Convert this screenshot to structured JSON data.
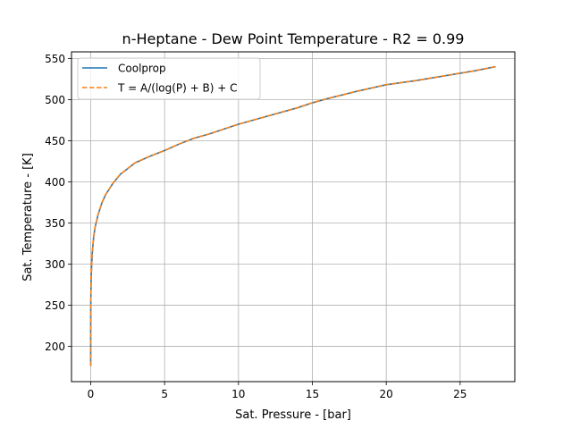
{
  "chart_data": {
    "type": "line",
    "title": "n-Heptane - Dew Point Temperature - R2 = 0.99",
    "xlabel": "Sat. Pressure - [bar]",
    "ylabel": "Sat. Temperature - [K]",
    "xlim": [
      -1.3,
      28.7
    ],
    "ylim": [
      157,
      558
    ],
    "xticks": [
      0,
      5,
      10,
      15,
      20,
      25
    ],
    "yticks": [
      200,
      250,
      300,
      350,
      400,
      450,
      500,
      550
    ],
    "grid": true,
    "legend_position": "top-left",
    "series": [
      {
        "name": "Coolprop",
        "color": "#1f77b4",
        "style": "solid",
        "x": [
          0.0001,
          0.001,
          0.005,
          0.01,
          0.03,
          0.05,
          0.1,
          0.2,
          0.3,
          0.5,
          0.75,
          1.0,
          1.5,
          2.0,
          3.0,
          4.0,
          5.0,
          6.0,
          7.0,
          8.0,
          9.0,
          10.0,
          12.0,
          14.0,
          15.0,
          16.0,
          18.0,
          20.0,
          22.0,
          24.0,
          26.0,
          27.4
        ],
        "y": [
          176,
          215,
          244,
          258,
          282,
          292,
          312,
          333,
          345,
          360,
          374,
          384,
          398,
          409,
          423,
          431,
          438,
          446,
          453,
          458,
          464,
          470,
          480,
          490,
          496,
          501,
          510,
          518,
          523,
          529,
          535,
          540
        ]
      },
      {
        "name": "T = A/(log(P) + B) + C",
        "color": "#ff7f0e",
        "style": "dashed",
        "x": [
          0.0001,
          0.001,
          0.005,
          0.01,
          0.03,
          0.05,
          0.1,
          0.2,
          0.3,
          0.5,
          0.75,
          1.0,
          1.5,
          2.0,
          3.0,
          4.0,
          5.0,
          6.0,
          7.0,
          8.0,
          9.0,
          10.0,
          12.0,
          14.0,
          15.0,
          16.0,
          18.0,
          20.0,
          22.0,
          24.0,
          26.0,
          27.4
        ],
        "y": [
          176,
          215,
          244,
          258,
          282,
          292,
          312,
          333,
          345,
          360,
          374,
          384,
          398,
          409,
          423,
          431,
          438,
          446,
          453,
          458,
          464,
          470,
          480,
          490,
          496,
          501,
          510,
          518,
          523,
          529,
          535,
          540
        ]
      }
    ]
  }
}
